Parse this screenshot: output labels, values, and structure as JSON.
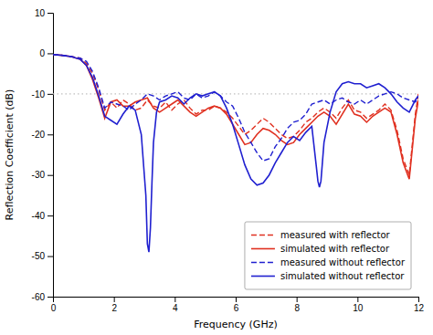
{
  "chart_data": {
    "type": "line",
    "xlabel": "Frequency (GHz)",
    "ylabel": "Reflection Coefficient (dB)",
    "xlim": [
      0,
      12
    ],
    "ylim": [
      -60,
      10
    ],
    "xticks": [
      0,
      2,
      4,
      6,
      8,
      10,
      12
    ],
    "yticks": [
      10,
      0,
      -10,
      -20,
      -30,
      -40,
      -50,
      -60
    ],
    "legend": "lower right",
    "grid": false,
    "reference_lines": [
      {
        "y": -10,
        "color": "#c0c0c0",
        "line_style": "dotted"
      }
    ],
    "series": [
      {
        "name": "measured with reflector",
        "color": "#e03020",
        "line_style": "dashed",
        "x": [
          0.0,
          0.3,
          0.6,
          0.9,
          1.1,
          1.3,
          1.5,
          1.7,
          1.9,
          2.1,
          2.3,
          2.5,
          2.7,
          2.9,
          3.1,
          3.3,
          3.5,
          3.7,
          3.9,
          4.1,
          4.3,
          4.5,
          4.7,
          4.9,
          5.1,
          5.3,
          5.5,
          5.7,
          5.9,
          6.1,
          6.3,
          6.5,
          6.7,
          6.9,
          7.1,
          7.3,
          7.5,
          7.7,
          7.9,
          8.1,
          8.3,
          8.5,
          8.7,
          8.9,
          9.1,
          9.3,
          9.5,
          9.7,
          9.9,
          10.1,
          10.3,
          10.5,
          10.7,
          10.9,
          11.1,
          11.3,
          11.5,
          11.7,
          11.9,
          12.0
        ],
        "values": [
          -0.3,
          -0.5,
          -0.8,
          -1.2,
          -2.5,
          -5.0,
          -9.0,
          -14.0,
          -12.0,
          -13.5,
          -11.5,
          -12.5,
          -14.0,
          -13.5,
          -11.5,
          -13.0,
          -13.5,
          -12.0,
          -14.0,
          -12.5,
          -11.5,
          -13.5,
          -15.0,
          -14.0,
          -14.0,
          -13.0,
          -13.5,
          -14.5,
          -16.0,
          -18.0,
          -20.0,
          -19.0,
          -17.5,
          -16.0,
          -17.0,
          -18.5,
          -20.0,
          -21.0,
          -20.5,
          -19.0,
          -17.0,
          -16.0,
          -14.5,
          -13.5,
          -14.5,
          -16.0,
          -13.5,
          -11.5,
          -14.0,
          -14.5,
          -16.0,
          -15.0,
          -14.0,
          -12.5,
          -14.0,
          -19.0,
          -26.0,
          -30.0,
          -15.0,
          -10.0
        ]
      },
      {
        "name": "simulated with reflector",
        "color": "#e03020",
        "line_style": "solid",
        "x": [
          0.0,
          0.3,
          0.6,
          0.9,
          1.1,
          1.3,
          1.5,
          1.7,
          1.9,
          2.1,
          2.3,
          2.5,
          2.7,
          2.9,
          3.1,
          3.3,
          3.5,
          3.7,
          3.9,
          4.1,
          4.3,
          4.5,
          4.7,
          4.9,
          5.1,
          5.3,
          5.5,
          5.7,
          5.9,
          6.1,
          6.3,
          6.5,
          6.7,
          6.9,
          7.1,
          7.3,
          7.5,
          7.7,
          7.9,
          8.1,
          8.3,
          8.5,
          8.7,
          8.9,
          9.1,
          9.3,
          9.5,
          9.7,
          9.9,
          10.1,
          10.3,
          10.5,
          10.7,
          10.9,
          11.1,
          11.3,
          11.5,
          11.7,
          11.9,
          12.0
        ],
        "values": [
          -0.3,
          -0.5,
          -0.8,
          -1.5,
          -3.0,
          -6.5,
          -11.0,
          -16.0,
          -12.0,
          -11.5,
          -13.0,
          -13.0,
          -12.0,
          -11.5,
          -11.0,
          -13.5,
          -14.5,
          -13.5,
          -12.5,
          -11.5,
          -13.0,
          -14.5,
          -15.5,
          -14.5,
          -13.5,
          -13.0,
          -13.5,
          -15.0,
          -17.5,
          -20.0,
          -22.5,
          -22.0,
          -20.0,
          -18.5,
          -19.0,
          -20.0,
          -21.5,
          -22.5,
          -22.0,
          -20.0,
          -18.5,
          -17.0,
          -15.5,
          -14.5,
          -15.5,
          -17.5,
          -15.0,
          -12.5,
          -15.0,
          -15.5,
          -17.0,
          -15.5,
          -14.5,
          -13.5,
          -14.5,
          -20.0,
          -27.0,
          -31.0,
          -16.0,
          -11.5
        ]
      },
      {
        "name": "measured without reflector",
        "color": "#2020d0",
        "line_style": "dashed",
        "x": [
          0.0,
          0.3,
          0.6,
          0.9,
          1.1,
          1.3,
          1.5,
          1.7,
          1.9,
          2.1,
          2.3,
          2.5,
          2.7,
          2.9,
          3.1,
          3.3,
          3.5,
          3.7,
          3.9,
          4.1,
          4.3,
          4.5,
          4.7,
          4.9,
          5.1,
          5.3,
          5.5,
          5.7,
          5.9,
          6.1,
          6.3,
          6.5,
          6.7,
          6.9,
          7.1,
          7.3,
          7.5,
          7.7,
          7.9,
          8.1,
          8.3,
          8.5,
          8.7,
          8.9,
          9.1,
          9.3,
          9.5,
          9.7,
          9.9,
          10.1,
          10.3,
          10.5,
          10.7,
          10.9,
          11.1,
          11.3,
          11.5,
          11.7,
          11.9,
          12.0
        ],
        "values": [
          -0.3,
          -0.5,
          -0.8,
          -1.2,
          -2.0,
          -4.5,
          -8.5,
          -13.5,
          -12.0,
          -12.5,
          -13.0,
          -14.0,
          -12.5,
          -11.5,
          -10.0,
          -10.5,
          -11.5,
          -10.5,
          -10.0,
          -9.5,
          -11.0,
          -11.5,
          -10.0,
          -11.0,
          -10.5,
          -9.5,
          -10.5,
          -12.0,
          -13.0,
          -16.0,
          -19.5,
          -22.0,
          -24.5,
          -26.5,
          -26.0,
          -23.0,
          -21.0,
          -18.5,
          -17.0,
          -16.5,
          -15.0,
          -12.5,
          -12.0,
          -11.5,
          -12.5,
          -11.5,
          -11.0,
          -12.0,
          -12.5,
          -11.5,
          -12.5,
          -11.5,
          -10.5,
          -10.0,
          -9.5,
          -10.0,
          -11.0,
          -11.5,
          -12.0,
          -11.0
        ]
      },
      {
        "name": "simulated without reflector",
        "color": "#2020d0",
        "line_style": "solid",
        "x": [
          0.0,
          0.3,
          0.6,
          0.9,
          1.1,
          1.3,
          1.5,
          1.7,
          1.9,
          2.1,
          2.3,
          2.5,
          2.7,
          2.9,
          3.05,
          3.1,
          3.15,
          3.2,
          3.25,
          3.3,
          3.4,
          3.5,
          3.7,
          3.9,
          4.1,
          4.3,
          4.5,
          4.7,
          4.9,
          5.1,
          5.3,
          5.5,
          5.7,
          5.9,
          6.1,
          6.3,
          6.5,
          6.7,
          6.9,
          7.1,
          7.3,
          7.5,
          7.7,
          7.9,
          8.1,
          8.3,
          8.5,
          8.65,
          8.7,
          8.75,
          8.8,
          8.9,
          9.1,
          9.3,
          9.5,
          9.7,
          9.9,
          10.1,
          10.3,
          10.5,
          10.7,
          10.9,
          11.1,
          11.3,
          11.5,
          11.7,
          11.9,
          12.0
        ],
        "values": [
          -0.3,
          -0.5,
          -0.8,
          -1.5,
          -3.0,
          -6.0,
          -10.5,
          -15.5,
          -16.5,
          -17.5,
          -15.0,
          -13.0,
          -14.0,
          -20.0,
          -35.0,
          -47.0,
          -49.0,
          -43.0,
          -32.0,
          -22.0,
          -14.5,
          -12.0,
          -11.5,
          -10.5,
          -11.0,
          -12.5,
          -11.0,
          -10.0,
          -10.5,
          -10.0,
          -9.5,
          -10.5,
          -13.5,
          -17.5,
          -22.5,
          -27.5,
          -31.0,
          -32.5,
          -32.0,
          -30.0,
          -27.0,
          -24.5,
          -22.0,
          -20.5,
          -21.5,
          -19.5,
          -18.0,
          -28.0,
          -31.5,
          -33.0,
          -31.5,
          -22.0,
          -14.5,
          -9.5,
          -7.5,
          -7.0,
          -7.5,
          -7.5,
          -8.5,
          -8.0,
          -7.5,
          -8.5,
          -10.0,
          -12.0,
          -13.5,
          -14.5,
          -11.5,
          -10.5
        ]
      }
    ]
  }
}
